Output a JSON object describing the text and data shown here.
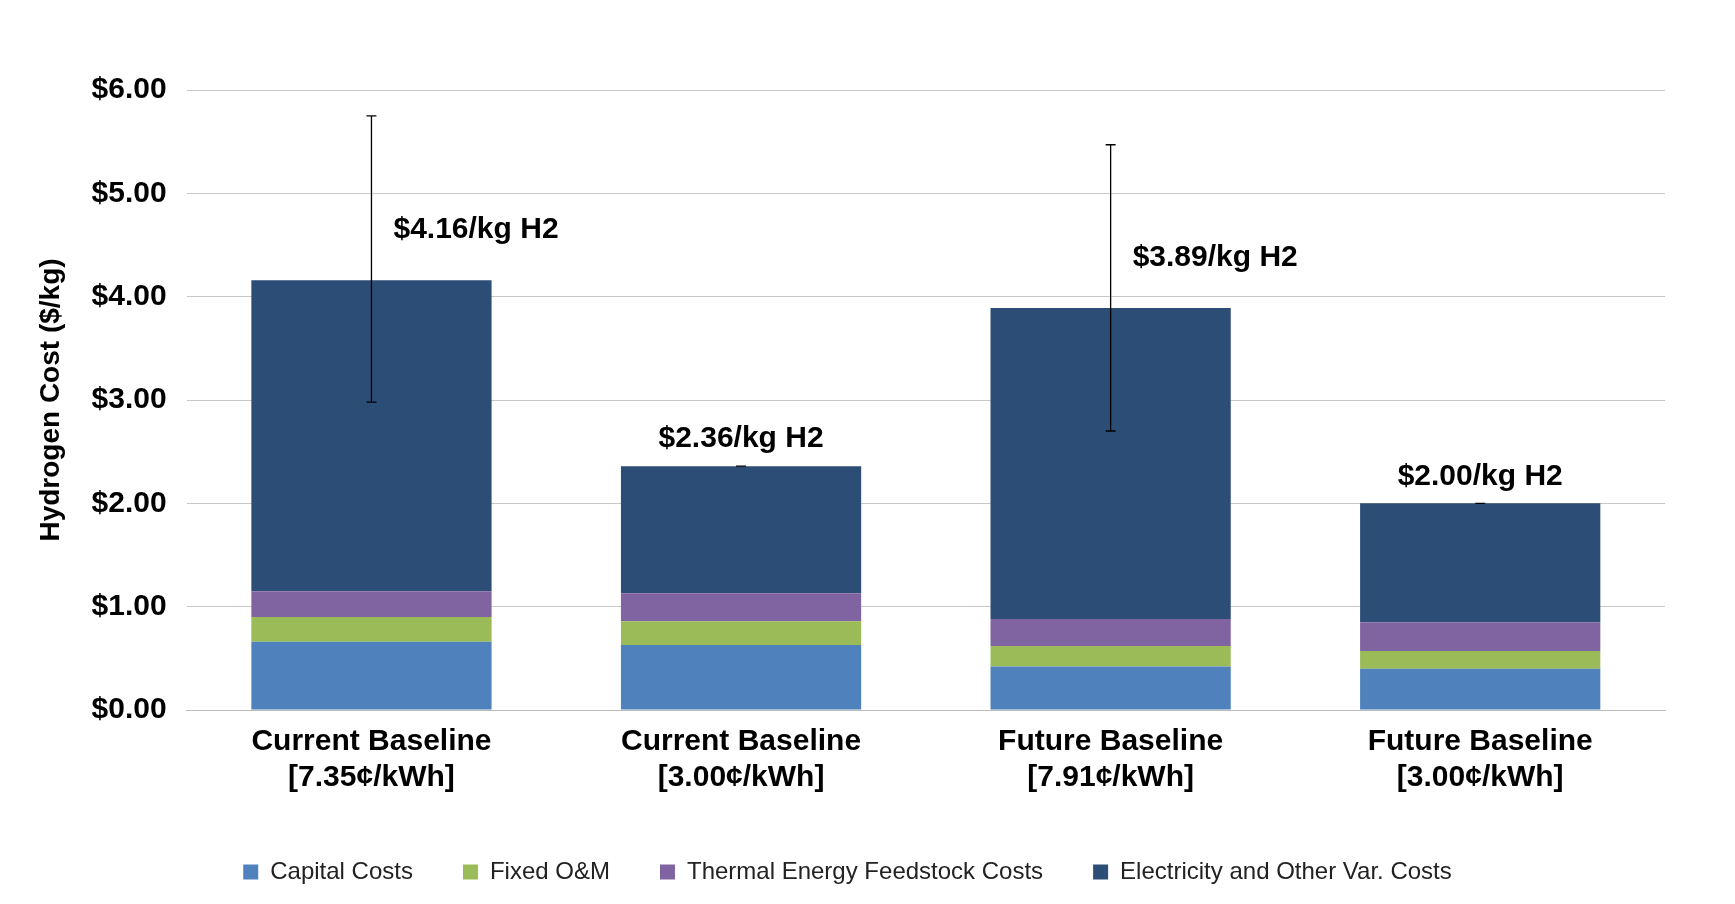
{
  "chart_data": {
    "type": "bar",
    "stacked": true,
    "ylabel": "Hydrogen Cost ($/kg)",
    "categories": [
      "Current Baseline\n[7.35¢/kWh]",
      "Current Baseline\n[3.00¢/kWh]",
      "Future Baseline\n[7.91¢/kWh]",
      "Future Baseline\n[3.00¢/kWh]"
    ],
    "series": [
      {
        "name": "Capital Costs",
        "color": "#4f81bd",
        "values": [
          0.66,
          0.63,
          0.42,
          0.4
        ]
      },
      {
        "name": "Fixed O&M",
        "color": "#9bbb59",
        "values": [
          0.24,
          0.23,
          0.2,
          0.17
        ]
      },
      {
        "name": "Thermal Energy Feedstock Costs",
        "color": "#8064a2",
        "values": [
          0.25,
          0.27,
          0.26,
          0.28
        ]
      },
      {
        "name": "Electricity and Other Var. Costs",
        "color": "#2c4d75",
        "values": [
          3.01,
          1.23,
          3.01,
          1.15
        ],
        "errors": [
          [
            2.98,
            5.75
          ],
          [
            2.36,
            2.36
          ],
          [
            2.7,
            5.47
          ],
          [
            2.0,
            2.0
          ]
        ]
      }
    ],
    "ylim": [
      0,
      6
    ],
    "yticks": [
      {
        "value": 0,
        "label": "$0.00"
      },
      {
        "value": 1,
        "label": "$1.00"
      },
      {
        "value": 2,
        "label": "$2.00"
      },
      {
        "value": 3,
        "label": "$3.00"
      },
      {
        "value": 4,
        "label": "$4.00"
      },
      {
        "value": 5,
        "label": "$5.00"
      },
      {
        "value": 6,
        "label": "$6.00"
      }
    ],
    "grid": "y",
    "legend": "bottom",
    "annotations": [
      {
        "text": "$4.16/kg H2",
        "x": "Current Baseline\n[7.35¢/kWh]",
        "y": 4.16
      },
      {
        "text": "$2.36/kg H2",
        "x": "Current Baseline\n[3.00¢/kWh]",
        "y": 2.36
      },
      {
        "text": "$3.89/kg H2",
        "x": "Future Baseline\n[7.91¢/kWh]",
        "y": 3.89
      },
      {
        "text": "$2.00/kg H2",
        "x": "Future Baseline\n[3.00¢/kWh]",
        "y": 2.0
      }
    ]
  }
}
